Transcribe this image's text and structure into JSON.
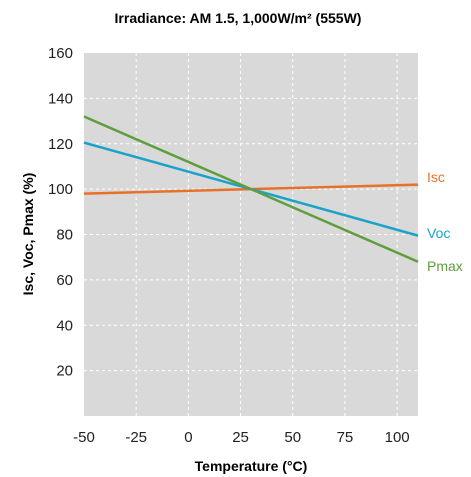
{
  "chart_data": {
    "type": "line",
    "title": "Irradiance: AM 1.5, 1,000W/m² (555W)",
    "xlabel": "Temperature (°C)",
    "ylabel": "Isc, Voc, Pmax (%)",
    "xlim": [
      -50,
      110
    ],
    "ylim": [
      0,
      160
    ],
    "xticks": [
      -50,
      -25,
      0,
      25,
      50,
      75,
      100
    ],
    "xtick_labels": [
      "-50",
      "-25",
      "0",
      "25",
      "50",
      "75",
      "100"
    ],
    "yticks": [
      20,
      40,
      60,
      80,
      100,
      120,
      140,
      160
    ],
    "ytick_labels": [
      "20",
      "40",
      "60",
      "80",
      "100",
      "120",
      "140",
      "160"
    ],
    "grid": true,
    "legend": "right-of-line-ends",
    "series": [
      {
        "name": "Isc",
        "color": "#E8712A",
        "x": [
          -50,
          110
        ],
        "y": [
          98,
          102
        ]
      },
      {
        "name": "Voc",
        "color": "#1AA3C9",
        "x": [
          -50,
          110
        ],
        "y": [
          120.5,
          79.5
        ]
      },
      {
        "name": "Pmax",
        "color": "#5E9E3C",
        "x": [
          -50,
          110
        ],
        "y": [
          132,
          68
        ]
      }
    ]
  }
}
